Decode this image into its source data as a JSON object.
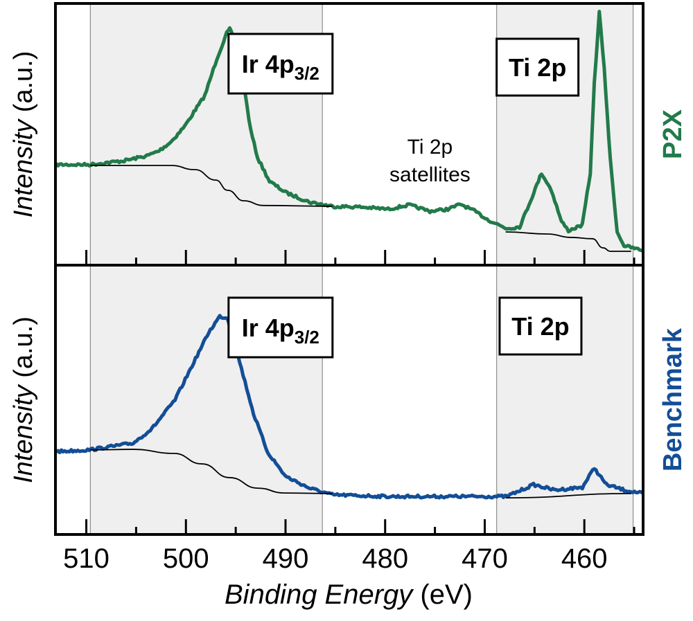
{
  "chart_data": [
    {
      "type": "line",
      "panel": "top",
      "side_label": "P2X",
      "ylabel_italic": "Intensity",
      "ylabel_unit": " (a.u.)",
      "xlim": [
        513.1,
        454.1
      ],
      "ylim": [
        0,
        100
      ],
      "x_reversed": true,
      "grid": false,
      "series": [
        {
          "role": "spectrum",
          "color": "#227a4a",
          "x": [
            513.0,
            509.7,
            506.2,
            503.9,
            502.7,
            501.5,
            500.1,
            499.2,
            498.1,
            496.9,
            495.9,
            495.6,
            494.9,
            494.2,
            493.5,
            492.8,
            491.6,
            490.0,
            487.6,
            485.3,
            482.4,
            479.7,
            477.6,
            475.5,
            473.7,
            472.4,
            471.0,
            469.6,
            467.8,
            466.5,
            465.4,
            464.3,
            463.3,
            462.3,
            461.6,
            460.2,
            459.4,
            459.0,
            458.5,
            458.0,
            457.4,
            456.7,
            456.0,
            454.1
          ],
          "y": [
            38.4,
            38.4,
            39.9,
            41.8,
            43.7,
            47.1,
            53.2,
            58.5,
            64.8,
            78.8,
            88.6,
            90.2,
            84.1,
            69.0,
            51.6,
            41.0,
            32.0,
            27.8,
            24.1,
            22.5,
            22.2,
            21.4,
            23.0,
            20.6,
            21.4,
            23.3,
            20.6,
            17.2,
            14.0,
            14.6,
            24.6,
            35.2,
            28.6,
            16.7,
            13.2,
            15.3,
            35.2,
            69.6,
            96.6,
            74.9,
            40.5,
            12.7,
            7.4,
            5.6
          ]
        },
        {
          "role": "background-ir",
          "color": "#000000",
          "x": [
            509.6,
            501.5,
            499.1,
            497.0,
            495.8,
            494.2,
            492.2,
            485.3
          ],
          "y": [
            38.1,
            38.1,
            36.5,
            32.5,
            28.6,
            24.6,
            22.8,
            22.5
          ]
        },
        {
          "role": "background-ti",
          "color": "#000000",
          "x": [
            467.9,
            463.7,
            461.3,
            459.2,
            458.1,
            457.4,
            455.3
          ],
          "y": [
            12.7,
            11.9,
            10.6,
            10.1,
            6.6,
            5.3,
            5.3
          ]
        }
      ],
      "annotations": [
        {
          "text": "Ir 4p",
          "sub": "3/2",
          "boxed": true,
          "x": 490.5
        },
        {
          "text": "Ti 2p",
          "boxed": true,
          "x": 464.7
        },
        {
          "line1": "Ti 2p",
          "line2": "satellites",
          "boxed": false,
          "x": 475.5
        }
      ]
    },
    {
      "type": "line",
      "panel": "bottom",
      "side_label": "Benchmark",
      "ylabel_italic": "Intensity",
      "ylabel_unit": " (a.u.)",
      "xlabel_italic": "Binding Energy",
      "xlabel_unit": " (eV)",
      "xlim": [
        513.1,
        454.1
      ],
      "ylim": [
        0,
        100
      ],
      "x_reversed": true,
      "xticks": [
        510,
        500,
        490,
        480,
        470,
        460
      ],
      "xtick_labels": [
        "510",
        "500",
        "490",
        "480",
        "470",
        "460"
      ],
      "minor_xticks": [
        505,
        495,
        485,
        475,
        465,
        455
      ],
      "grid": false,
      "series": [
        {
          "role": "spectrum",
          "color": "#134e96",
          "x": [
            513.0,
            509.7,
            505.3,
            503.4,
            501.1,
            499.2,
            497.7,
            496.6,
            495.8,
            494.6,
            493.2,
            491.8,
            490.0,
            487.6,
            485.3,
            479.7,
            473.4,
            467.8,
            465.1,
            463.0,
            460.2,
            459.0,
            457.8,
            456.0,
            454.1
          ],
          "y": [
            30.8,
            31.4,
            33.9,
            39.3,
            49.9,
            64.0,
            75.1,
            81.0,
            80.2,
            64.0,
            44.7,
            30.6,
            21.6,
            17.2,
            14.7,
            14.1,
            14.1,
            14.1,
            18.5,
            16.5,
            17.5,
            24.7,
            18.5,
            16.5,
            15.2
          ]
        },
        {
          "role": "background-ir",
          "color": "#000000",
          "x": [
            509.6,
            505.3,
            501.2,
            498.4,
            495.6,
            492.8,
            490.1,
            485.3
          ],
          "y": [
            31.4,
            31.6,
            30.1,
            26.2,
            21.1,
            17.2,
            15.4,
            15.2
          ]
        },
        {
          "role": "background-ti",
          "color": "#000000",
          "x": [
            467.9,
            455.3
          ],
          "y": [
            13.6,
            15.2
          ]
        }
      ],
      "annotations": [
        {
          "text": "Ir 4p",
          "sub": "3/2",
          "boxed": true,
          "x": 490.5
        },
        {
          "text": "Ti 2p",
          "boxed": true,
          "x": 464.4
        }
      ]
    }
  ],
  "shaded_regions_eV": [
    [
      509.6,
      486.3
    ],
    [
      468.8,
      455.1
    ]
  ],
  "colors": {
    "p2x": "#227a4a",
    "benchmark": "#134e96",
    "shade": "#efefef",
    "background_line": "#000000"
  }
}
